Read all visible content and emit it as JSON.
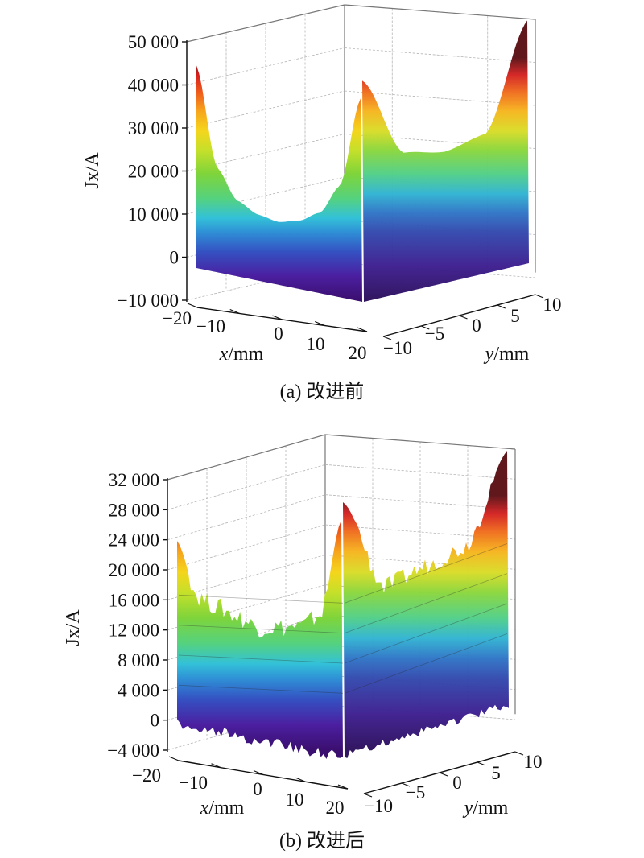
{
  "chart_data": [
    {
      "panel": "a",
      "type": "surface",
      "caption": "(a) 改进前",
      "zlabel": "Jx/A",
      "xlabel": "x/mm",
      "ylabel": "y/mm",
      "zticks": [
        50000,
        40000,
        30000,
        20000,
        10000,
        0,
        -10000
      ],
      "ztick_labels": [
        "50 000",
        "40 000",
        "30 000",
        "20 000",
        "10 000",
        "0",
        "−10 000"
      ],
      "zlim": [
        -10000,
        50000
      ],
      "xticks": [
        "−20",
        "−10",
        "0",
        "10",
        "20"
      ],
      "xlim": [
        -20,
        20
      ],
      "yticks": [
        "−10",
        "−5",
        "0",
        "5",
        "10"
      ],
      "ylim": [
        -10,
        10
      ],
      "front_profile_x": [
        -20,
        -15,
        -10,
        -5,
        0,
        5,
        10,
        15,
        20
      ],
      "front_profile_jx": [
        43000,
        20000,
        13000,
        10500,
        9500,
        10500,
        13000,
        20000,
        41000
      ],
      "side_profile_y": [
        -10,
        -5,
        0,
        5,
        10
      ],
      "side_profile_jx": [
        41000,
        22000,
        20000,
        22000,
        46000
      ],
      "peak_max": 48000,
      "grid": true
    },
    {
      "panel": "b",
      "type": "surface",
      "caption": "(b) 改进后",
      "zlabel": "Jx/A",
      "xlabel": "x/mm",
      "ylabel": "y/mm",
      "zticks": [
        32000,
        28000,
        24000,
        20000,
        16000,
        12000,
        8000,
        4000,
        0,
        -4000
      ],
      "ztick_labels": [
        "32 000",
        "28 000",
        "24 000",
        "20 000",
        "16 000",
        "12 000",
        "8 000",
        "4 000",
        "0",
        "−4 000"
      ],
      "zlim": [
        -4000,
        32000
      ],
      "xticks": [
        "−20",
        "−10",
        "0",
        "10",
        "20"
      ],
      "xlim": [
        -20,
        20
      ],
      "yticks": [
        "−10",
        "−5",
        "0",
        "5",
        "10"
      ],
      "ylim": [
        -10,
        10
      ],
      "front_profile_x": [
        -20,
        -15,
        -10,
        -5,
        0,
        5,
        10,
        15,
        20
      ],
      "front_profile_jx": [
        23000,
        16000,
        15000,
        14000,
        13000,
        13500,
        14000,
        16000,
        29000
      ],
      "side_profile_y": [
        -10,
        -5,
        0,
        5,
        10
      ],
      "side_profile_jx": [
        29000,
        16000,
        17000,
        18000,
        29000
      ],
      "peak_max": 31000,
      "grid": true
    }
  ]
}
